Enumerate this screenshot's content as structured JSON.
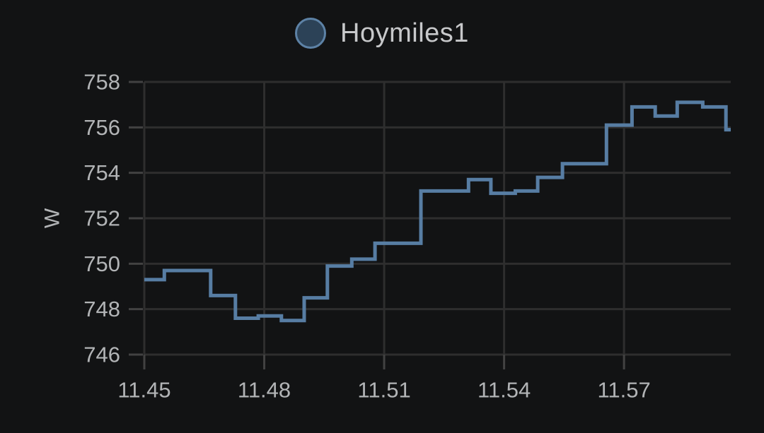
{
  "legend": {
    "label": "Hoymiles1"
  },
  "colors": {
    "background": "#121314",
    "grid": "#2e2e2e",
    "tick": "#424242",
    "axis_text": "#b2b4b6",
    "title_text": "#c7c8ca",
    "line": "#577da3",
    "legend_fill": "#2c4257",
    "legend_border": "#5d82a6"
  },
  "chart_data": {
    "type": "line",
    "step": "after",
    "title": "Hoymiles1",
    "xlabel": "",
    "ylabel": "W",
    "grid": true,
    "legend_position": "top-center",
    "xlim": [
      11.45,
      11.5967
    ],
    "ylim": [
      746,
      758
    ],
    "xticks": [
      11.45,
      11.48,
      11.51,
      11.54,
      11.57
    ],
    "xtick_labels": [
      "11.45",
      "11.48",
      "11.51",
      "11.54",
      "11.57"
    ],
    "yticks": [
      746,
      748,
      750,
      752,
      754,
      756,
      758
    ],
    "ytick_labels": [
      "746",
      "748",
      "750",
      "752",
      "754",
      "756",
      "758"
    ],
    "series": [
      {
        "name": "Hoymiles1",
        "unit": "W",
        "points": [
          [
            11.45,
            749.3
          ],
          [
            11.455,
            749.7
          ],
          [
            11.4666,
            748.6
          ],
          [
            11.4728,
            747.6
          ],
          [
            11.4785,
            747.7
          ],
          [
            11.4843,
            747.5
          ],
          [
            11.49,
            748.5
          ],
          [
            11.4958,
            749.9
          ],
          [
            11.5019,
            750.2
          ],
          [
            11.5077,
            750.9
          ],
          [
            11.5192,
            753.2
          ],
          [
            11.5311,
            753.7
          ],
          [
            11.5367,
            753.1
          ],
          [
            11.5428,
            753.2
          ],
          [
            11.5484,
            753.8
          ],
          [
            11.5546,
            754.4
          ],
          [
            11.5656,
            756.1
          ],
          [
            11.572,
            756.9
          ],
          [
            11.5778,
            756.5
          ],
          [
            11.5833,
            757.1
          ],
          [
            11.5897,
            756.9
          ],
          [
            11.5955,
            755.9
          ]
        ],
        "end_x": 11.5967
      }
    ]
  }
}
